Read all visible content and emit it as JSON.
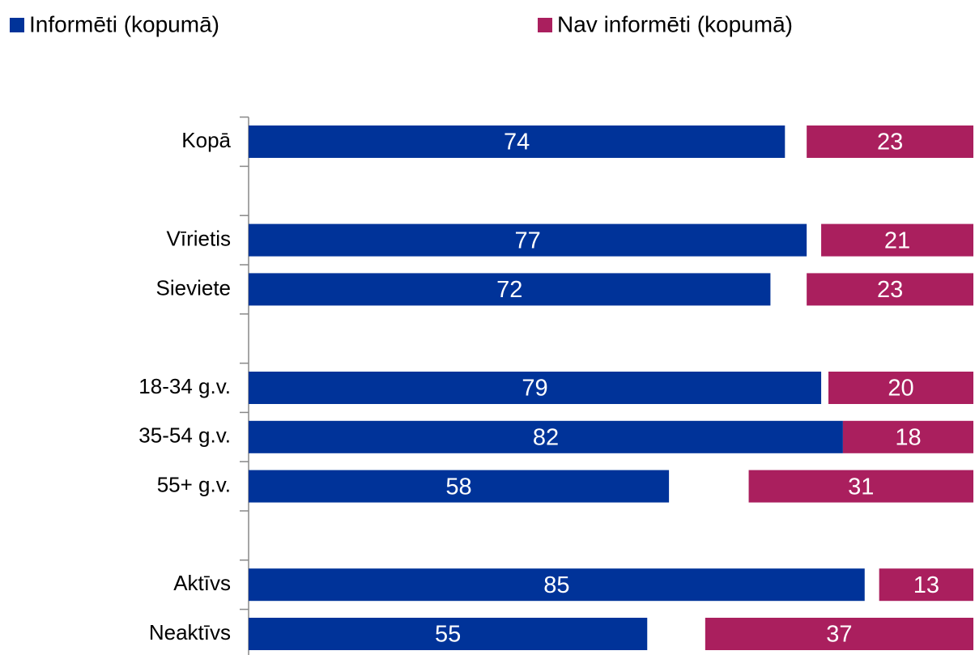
{
  "chart_data": {
    "type": "bar",
    "orientation": "horizontal",
    "categories": [
      "Kopā",
      null,
      "Vīrietis",
      "Sieviete",
      null,
      "18-34 g.v.",
      "35-54 g.v.",
      "55+ g.v.",
      null,
      "Aktīvs",
      "Neaktīvs"
    ],
    "series": [
      {
        "name": "Informēti (kopumā)",
        "color": "#003399",
        "values": [
          74,
          null,
          77,
          72,
          null,
          79,
          82,
          58,
          null,
          85,
          55
        ]
      },
      {
        "name": "Nav informēti (kopumā)",
        "color": "#aa1f5e",
        "values": [
          23,
          null,
          21,
          23,
          null,
          20,
          18,
          31,
          null,
          13,
          37
        ]
      }
    ],
    "xlim": [
      0,
      100
    ],
    "legend": "top"
  }
}
